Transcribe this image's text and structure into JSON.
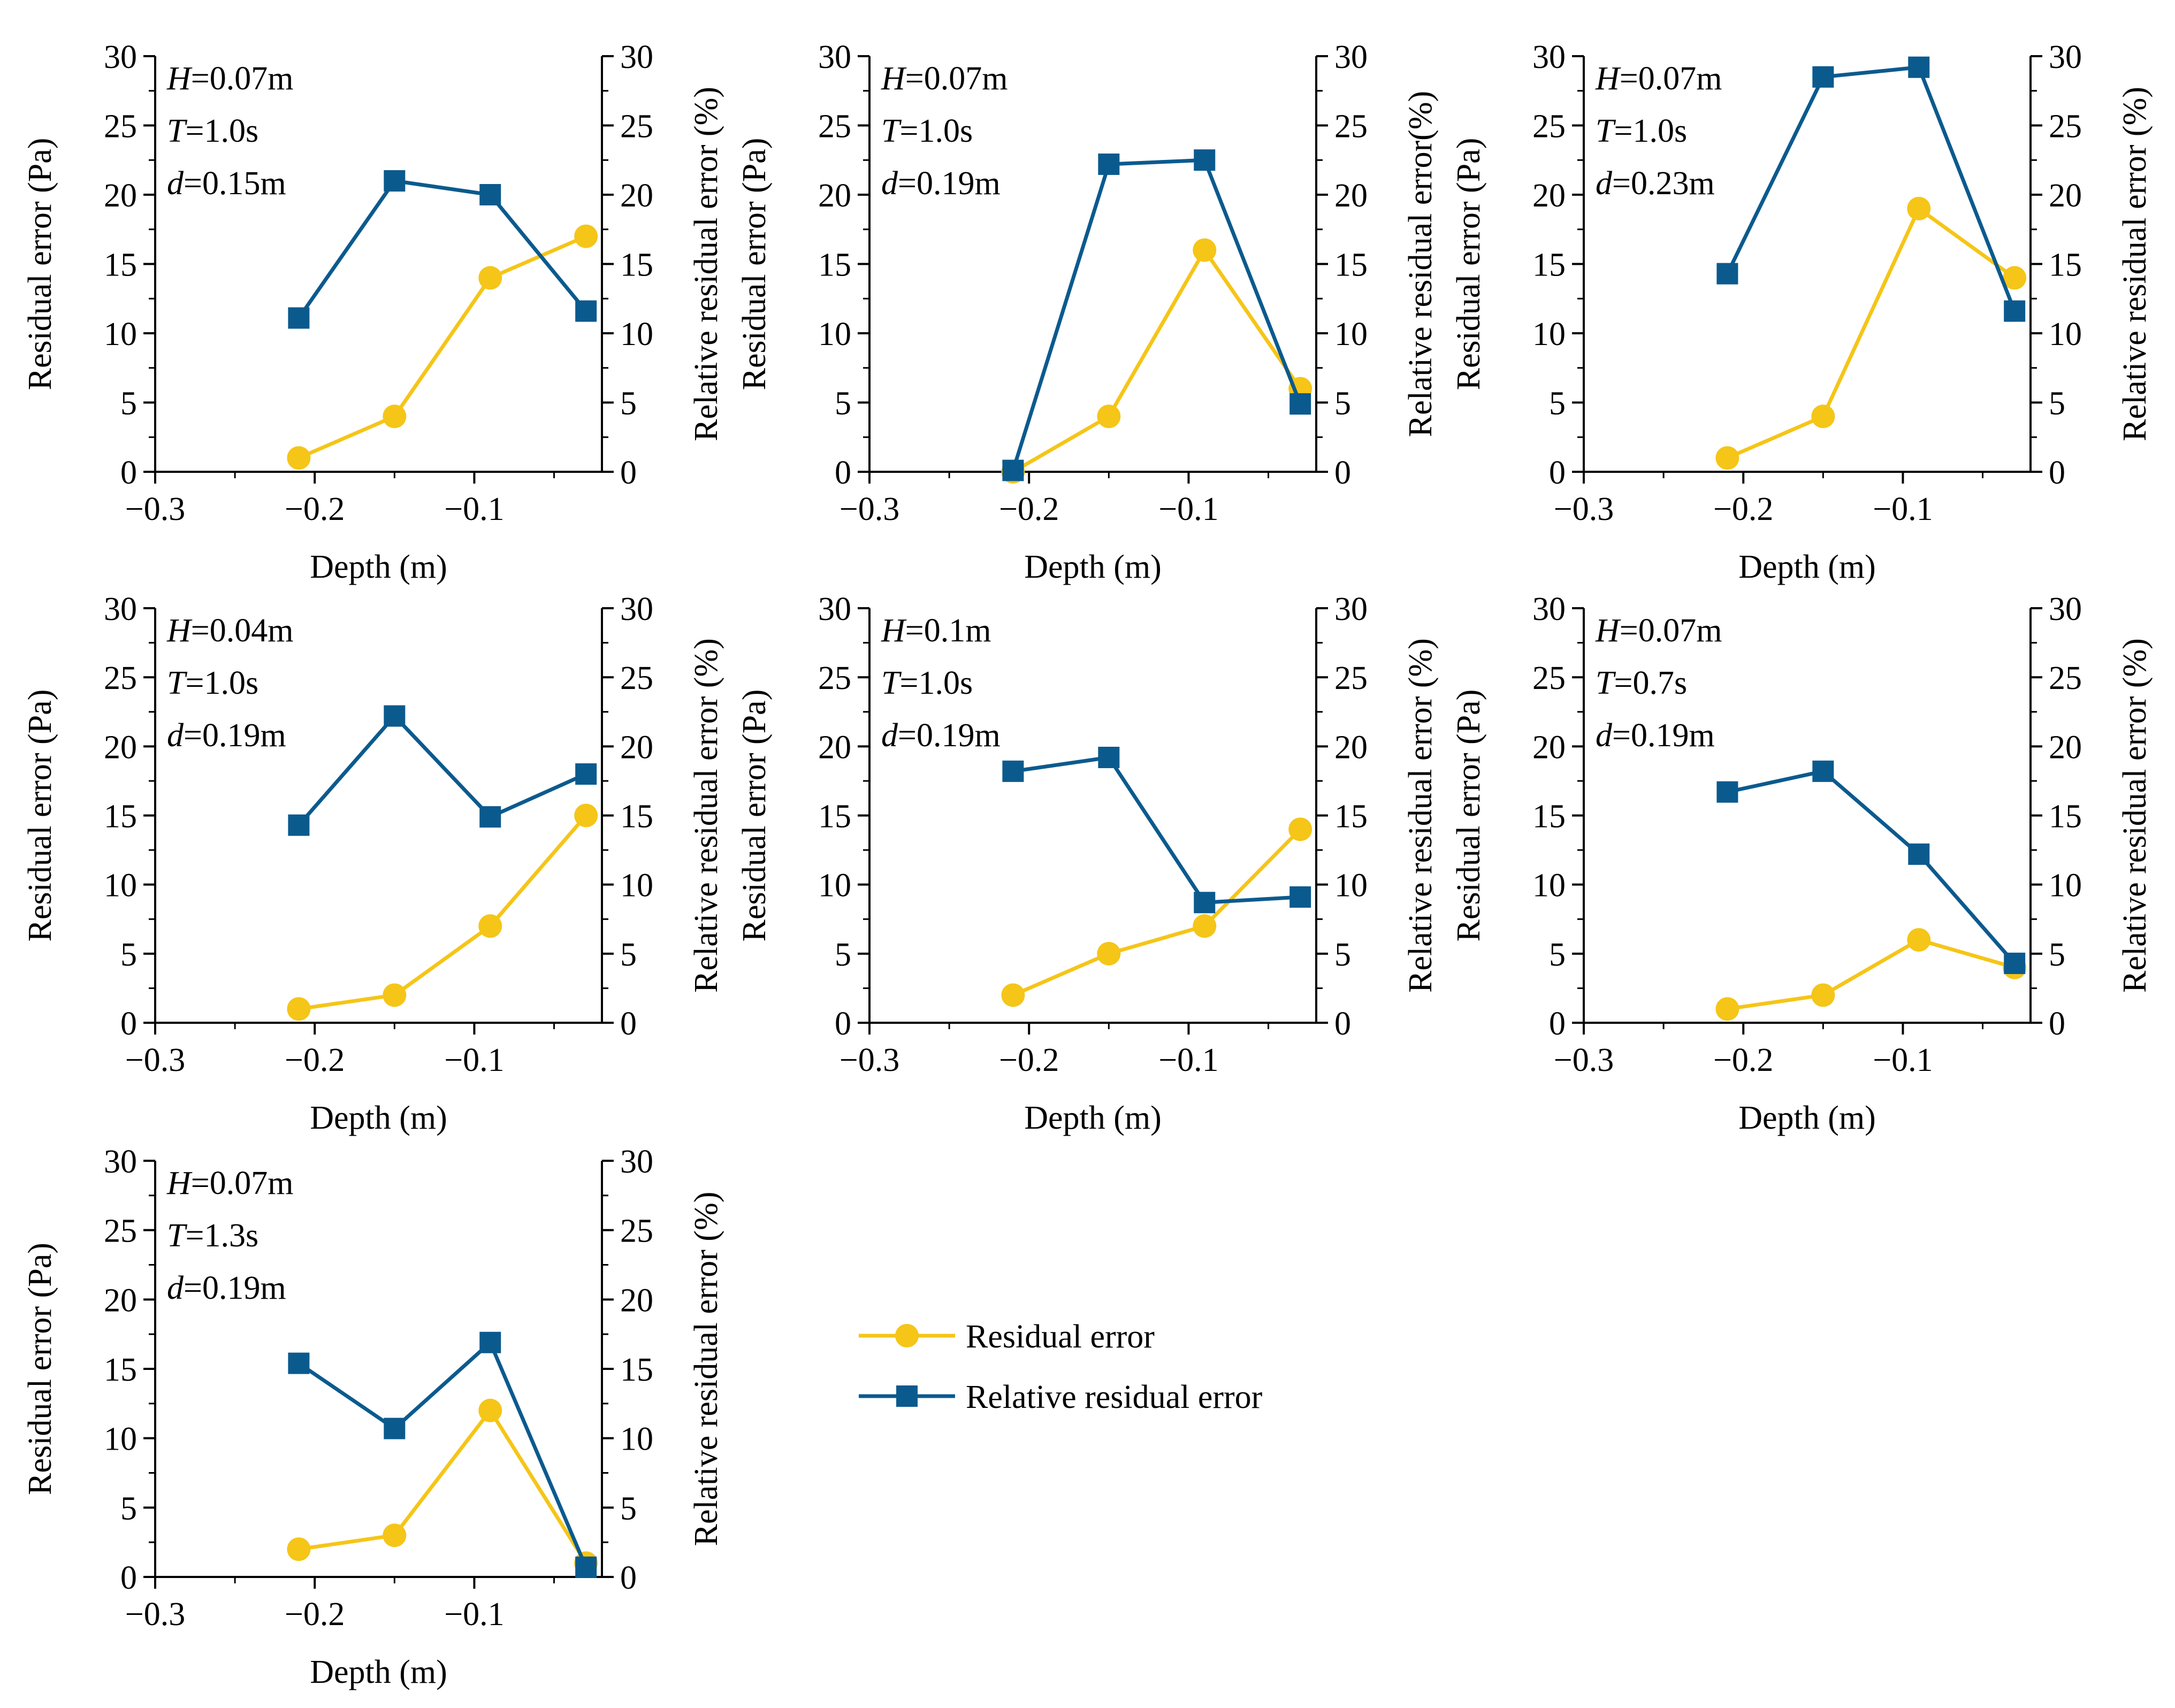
{
  "chart_data": [
    {
      "type": "line",
      "params": [
        {
          "name": "H",
          "value": "=0.07m"
        },
        {
          "name": "T",
          "value": "=1.0s"
        },
        {
          "name": "d",
          "value": "=0.15m"
        }
      ],
      "xlabel": "Depth (m)",
      "ylabel_left": "Residual error (Pa)",
      "ylabel_right": "Relative residual error (%)",
      "xlim": [
        -0.3,
        -0.02
      ],
      "ylim": [
        0,
        30
      ],
      "xticks": [
        "−0.3",
        "−0.2",
        "−0.1"
      ],
      "yticks": [
        "0",
        "5",
        "10",
        "15",
        "20",
        "25",
        "30"
      ],
      "x": [
        -0.21,
        -0.15,
        -0.09,
        -0.03
      ],
      "series": [
        {
          "name": "Residual error",
          "axis": "left",
          "values": [
            1,
            4,
            14,
            17
          ]
        },
        {
          "name": "Relative residual error",
          "axis": "right",
          "values": [
            11.1,
            21.0,
            20.0,
            11.6
          ]
        }
      ]
    },
    {
      "type": "line",
      "params": [
        {
          "name": "H",
          "value": "=0.07m"
        },
        {
          "name": "T",
          "value": "=1.0s"
        },
        {
          "name": "d",
          "value": "=0.19m"
        }
      ],
      "xlabel": "Depth (m)",
      "ylabel_left": "Residual error (Pa)",
      "ylabel_right": "Relative residual error(%)",
      "xlim": [
        -0.3,
        -0.02
      ],
      "ylim": [
        0,
        30
      ],
      "xticks": [
        "−0.3",
        "−0.2",
        "−0.1"
      ],
      "yticks": [
        "0",
        "5",
        "10",
        "15",
        "20",
        "25",
        "30"
      ],
      "x": [
        -0.21,
        -0.15,
        -0.09,
        -0.03
      ],
      "series": [
        {
          "name": "Residual error",
          "axis": "left",
          "values": [
            0,
            4,
            16,
            6
          ]
        },
        {
          "name": "Relative residual error",
          "axis": "right",
          "values": [
            0.1,
            22.2,
            22.5,
            4.9
          ]
        }
      ]
    },
    {
      "type": "line",
      "params": [
        {
          "name": "H",
          "value": "=0.07m"
        },
        {
          "name": "T",
          "value": "=1.0s"
        },
        {
          "name": "d",
          "value": "=0.23m"
        }
      ],
      "xlabel": "Depth (m)",
      "ylabel_left": "Residual error (Pa)",
      "ylabel_right": "Relative residual error (%)",
      "xlim": [
        -0.3,
        -0.02
      ],
      "ylim": [
        0,
        30
      ],
      "xticks": [
        "−0.3",
        "−0.2",
        "−0.1"
      ],
      "yticks": [
        "0",
        "5",
        "10",
        "15",
        "20",
        "25",
        "30"
      ],
      "x": [
        -0.21,
        -0.15,
        -0.09,
        -0.03
      ],
      "series": [
        {
          "name": "Residual error",
          "axis": "left",
          "values": [
            1,
            4,
            19,
            14
          ]
        },
        {
          "name": "Relative residual error",
          "axis": "right",
          "values": [
            14.3,
            28.5,
            29.2,
            11.6
          ]
        }
      ]
    },
    {
      "type": "line",
      "params": [
        {
          "name": "H",
          "value": "=0.04m"
        },
        {
          "name": "T",
          "value": "=1.0s"
        },
        {
          "name": "d",
          "value": "=0.19m"
        }
      ],
      "xlabel": "Depth (m)",
      "ylabel_left": "Residual error (Pa)",
      "ylabel_right": "Relative residual error (%)",
      "xlim": [
        -0.3,
        -0.02
      ],
      "ylim": [
        0,
        30
      ],
      "xticks": [
        "−0.3",
        "−0.2",
        "−0.1"
      ],
      "yticks": [
        "0",
        "5",
        "10",
        "15",
        "20",
        "25",
        "30"
      ],
      "x": [
        -0.21,
        -0.15,
        -0.09,
        -0.03
      ],
      "series": [
        {
          "name": "Residual error",
          "axis": "left",
          "values": [
            1,
            2,
            7,
            15
          ]
        },
        {
          "name": "Relative residual error",
          "axis": "right",
          "values": [
            14.3,
            22.2,
            14.9,
            18.0
          ]
        }
      ]
    },
    {
      "type": "line",
      "params": [
        {
          "name": "H",
          "value": "=0.1m"
        },
        {
          "name": "T",
          "value": "=1.0s"
        },
        {
          "name": "d",
          "value": "=0.19m"
        }
      ],
      "xlabel": "Depth (m)",
      "ylabel_left": "Residual error (Pa)",
      "ylabel_right": "Relative residual error (%)",
      "xlim": [
        -0.3,
        -0.02
      ],
      "ylim": [
        0,
        30
      ],
      "xticks": [
        "−0.3",
        "−0.2",
        "−0.1"
      ],
      "yticks": [
        "0",
        "5",
        "10",
        "15",
        "20",
        "25",
        "30"
      ],
      "x": [
        -0.21,
        -0.15,
        -0.09,
        -0.03
      ],
      "series": [
        {
          "name": "Residual error",
          "axis": "left",
          "values": [
            2,
            5,
            7,
            14
          ]
        },
        {
          "name": "Relative residual error",
          "axis": "right",
          "values": [
            18.2,
            19.2,
            8.7,
            9.1
          ]
        }
      ]
    },
    {
      "type": "line",
      "params": [
        {
          "name": "H",
          "value": "=0.07m"
        },
        {
          "name": "T",
          "value": "=0.7s"
        },
        {
          "name": "d",
          "value": "=0.19m"
        }
      ],
      "xlabel": "Depth (m)",
      "ylabel_left": "Residual error (Pa)",
      "ylabel_right": "Relative residual error (%)",
      "xlim": [
        -0.3,
        -0.02
      ],
      "ylim": [
        0,
        30
      ],
      "xticks": [
        "−0.3",
        "−0.2",
        "−0.1"
      ],
      "yticks": [
        "0",
        "5",
        "10",
        "15",
        "20",
        "25",
        "30"
      ],
      "x": [
        -0.21,
        -0.15,
        -0.09,
        -0.03
      ],
      "series": [
        {
          "name": "Residual error",
          "axis": "left",
          "values": [
            1,
            2,
            6,
            4
          ]
        },
        {
          "name": "Relative residual error",
          "axis": "right",
          "values": [
            16.7,
            18.2,
            12.2,
            4.3
          ]
        }
      ]
    },
    {
      "type": "line",
      "params": [
        {
          "name": "H",
          "value": "=0.07m"
        },
        {
          "name": "T",
          "value": "=1.3s"
        },
        {
          "name": "d",
          "value": "=0.19m"
        }
      ],
      "xlabel": "Depth (m)",
      "ylabel_left": "Residual error (Pa)",
      "ylabel_right": "Relative residual error (%)",
      "xlim": [
        -0.3,
        -0.02
      ],
      "ylim": [
        0,
        30
      ],
      "xticks": [
        "−0.3",
        "−0.2",
        "−0.1"
      ],
      "yticks": [
        "0",
        "5",
        "10",
        "15",
        "20",
        "25",
        "30"
      ],
      "x": [
        -0.21,
        -0.15,
        -0.09,
        -0.03
      ],
      "series": [
        {
          "name": "Residual error",
          "axis": "left",
          "values": [
            2,
            3,
            12,
            1
          ]
        },
        {
          "name": "Relative residual error",
          "axis": "right",
          "values": [
            15.4,
            10.7,
            16.9,
            0.7
          ]
        }
      ]
    }
  ],
  "legend": {
    "entries": [
      {
        "label": "Residual error",
        "color": "#F5C518",
        "marker": "circle"
      },
      {
        "label": "Relative residual error",
        "color": "#0B5A8E",
        "marker": "square"
      }
    ]
  },
  "colors": {
    "residual": "#F5C518",
    "relative": "#0B5A8E"
  }
}
